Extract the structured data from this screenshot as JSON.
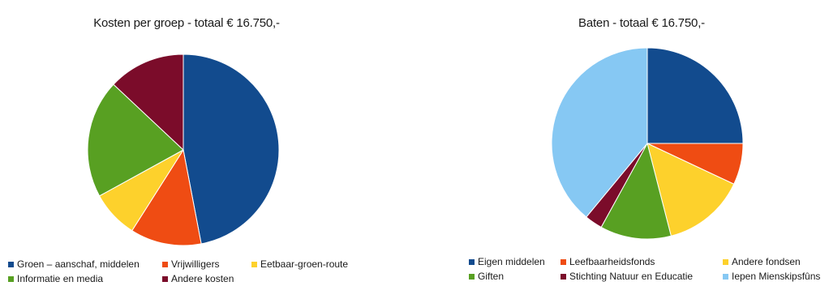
{
  "chart_data": [
    {
      "type": "pie",
      "title": "Kosten per groep - totaal € 16.750,-",
      "legend_position": "bottom",
      "series": [
        {
          "name": "Groen – aanschaf, middelen",
          "value": 47,
          "color": "#124b8e"
        },
        {
          "name": "Vrijwilligers",
          "value": 12,
          "color": "#ef4c13"
        },
        {
          "name": "Eetbaar-groen-route",
          "value": 8,
          "color": "#fdd12c"
        },
        {
          "name": "Informatie en media",
          "value": 20,
          "color": "#58a022"
        },
        {
          "name": "Andere kosten",
          "value": 13,
          "color": "#7b0c2a"
        }
      ]
    },
    {
      "type": "pie",
      "title": "Baten - totaal € 16.750,-",
      "legend_position": "bottom",
      "series": [
        {
          "name": "Eigen middelen",
          "value": 25,
          "color": "#124b8e"
        },
        {
          "name": "Leefbaarheidsfonds",
          "value": 7,
          "color": "#ef4c13"
        },
        {
          "name": "Andere fondsen",
          "value": 14,
          "color": "#fdd12c"
        },
        {
          "name": "Giften",
          "value": 12,
          "color": "#58a022"
        },
        {
          "name": "Stichting Natuur en Educatie",
          "value": 3,
          "color": "#7b0c2a"
        },
        {
          "name": "Iepen Mienskipsfûns",
          "value": 39,
          "color": "#86c8f3"
        }
      ]
    }
  ]
}
